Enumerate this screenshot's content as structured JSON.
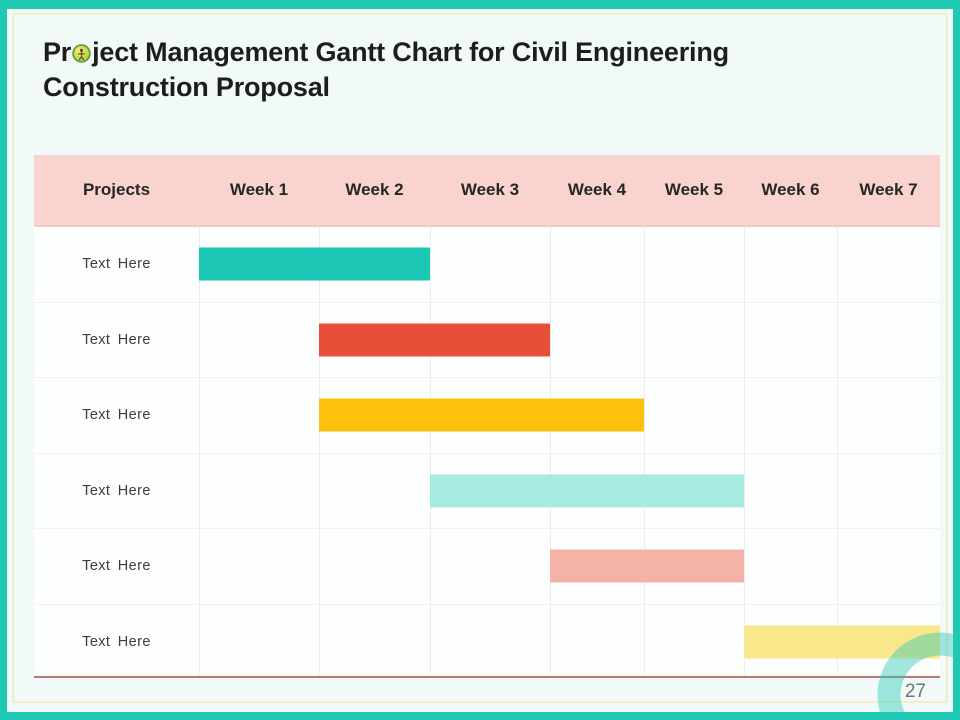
{
  "slide": {
    "title": {
      "prefix": "Pr",
      "suffix": "ject Management Gantt Chart for Civil Engineering",
      "line2": "Construction Proposal"
    },
    "title_icon": "green-circular-badge-icon",
    "page_number": "27"
  },
  "colors": {
    "frame_teal": "#1fc9b4",
    "panel_bg": "#f1faf8",
    "cream_border": "#f3edc6",
    "header_pink": "#f9d4ce",
    "bottom_rule": "#bd7a6e",
    "ring": "rgba(36,199,180,0.42)"
  },
  "chart_data": {
    "type": "gantt",
    "title": "Project Management Gantt Chart for Civil Engineering Construction Proposal",
    "columns": [
      "Projects",
      "Week 1",
      "Week 2",
      "Week 3",
      "Week 4",
      "Week 5",
      "Week 6",
      "Week 7"
    ],
    "x_axis_unit": "weeks",
    "x_range": [
      1,
      7
    ],
    "grid": "vertical-only",
    "rows": [
      {
        "label": "Text Here",
        "start_week": 1,
        "end_week": 2,
        "duration_weeks": 2,
        "color": "#1cc6b4"
      },
      {
        "label": "Text Here",
        "start_week": 2,
        "end_week": 3,
        "duration_weeks": 2,
        "color": "#e94f38"
      },
      {
        "label": "Text Here",
        "start_week": 2,
        "end_week": 4,
        "duration_weeks": 3,
        "color": "#fcc00d"
      },
      {
        "label": "Text Here",
        "start_week": 3,
        "end_week": 5,
        "duration_weeks": 3,
        "color": "#a6ebe1"
      },
      {
        "label": "Text Here",
        "start_week": 4,
        "end_week": 5,
        "duration_weeks": 2,
        "color": "#f5b2a7"
      },
      {
        "label": "Text Here",
        "start_week": 6,
        "end_week": 7,
        "duration_weeks": 2,
        "color": "#fae78c"
      }
    ]
  }
}
